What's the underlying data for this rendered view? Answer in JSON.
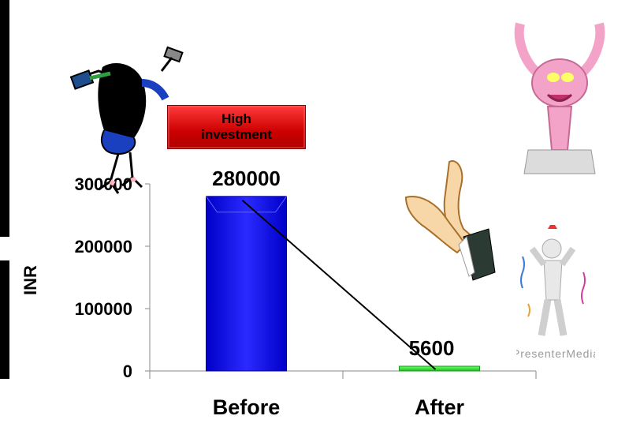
{
  "chart_data": {
    "type": "bar",
    "categories": [
      "Before",
      "After"
    ],
    "values": [
      280000,
      5600
    ],
    "data_labels": [
      "280000",
      "5600"
    ],
    "ylabel": "INR",
    "xlabel": "",
    "ylim": [
      0,
      300000
    ],
    "yticks": [
      0,
      100000,
      200000,
      300000
    ],
    "ytick_labels": [
      "0",
      "100000",
      "200000",
      "300000"
    ],
    "series": [
      {
        "values": [
          280000,
          5600
        ]
      }
    ],
    "colors": {
      "before": "#1a1aff",
      "after": "#33dd33"
    },
    "annotation": "High investment",
    "grid": false,
    "legend": "none"
  }
}
